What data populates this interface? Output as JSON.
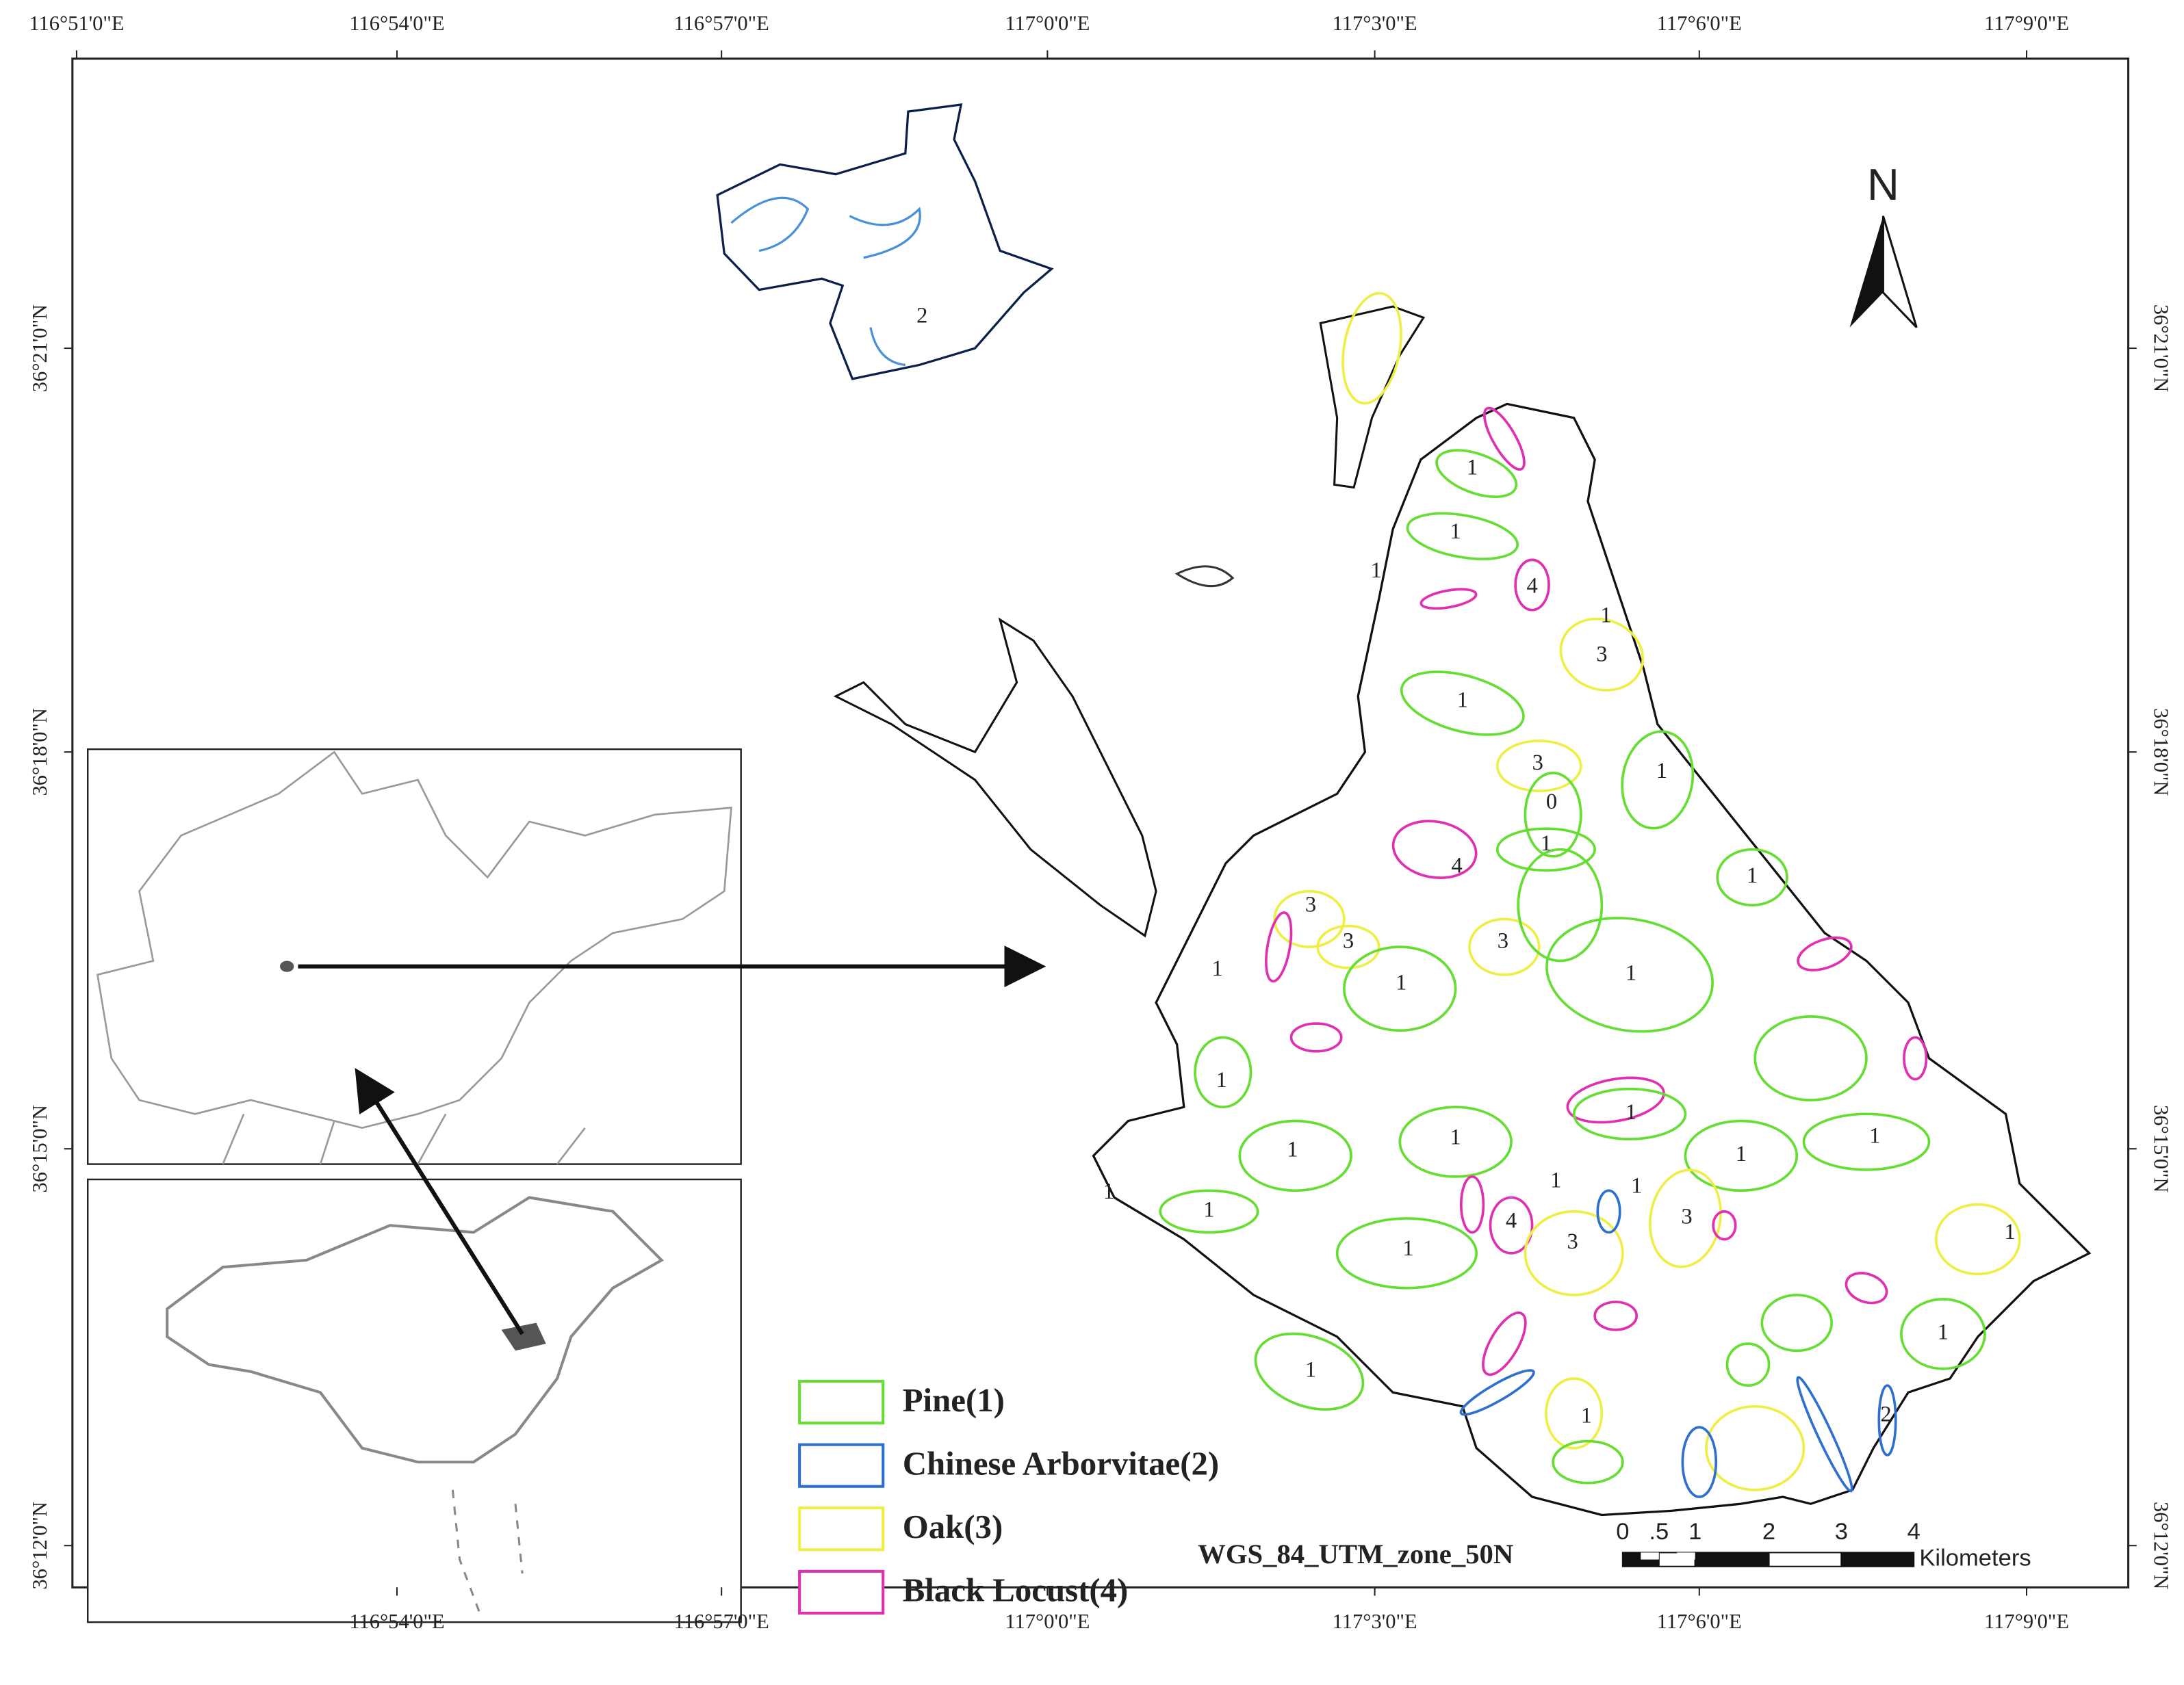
{
  "map": {
    "top_labels": [
      "116°51'0\"E",
      "116°54'0\"E",
      "116°57'0\"E",
      "117°0'0\"E",
      "117°3'0\"E",
      "117°6'0\"E",
      "117°9'0\"E"
    ],
    "bottom_labels": [
      "116°54'0\"E",
      "116°57'0\"E",
      "117°0'0\"E",
      "117°3'0\"E",
      "117°6'0\"E",
      "117°9'0\"E"
    ],
    "left_labels": [
      "36°21'0\"N",
      "36°18'0\"N",
      "36°15'0\"N",
      "36°12'0\"N"
    ],
    "right_labels": [
      "36°21'0\"N",
      "36°18'0\"N",
      "36°15'0\"N",
      "36°12'0\"N"
    ],
    "north": "N",
    "legend": [
      {
        "label": "Pine(1)",
        "color": "#66dd33"
      },
      {
        "label": "Chinese Arborvitae(2)",
        "color": "#2f6fd0"
      },
      {
        "label": "Oak(3)",
        "color": "#eeee44"
      },
      {
        "label": "Black Locust(4)",
        "color": "#e030b0"
      }
    ],
    "projection": "WGS_84_UTM_zone_50N",
    "scale_bar": {
      "labels": [
        "0",
        ".5",
        "1",
        "2",
        "3",
        "4"
      ],
      "unit": "Kilometers"
    },
    "region_labels": [
      "2",
      "1",
      "1",
      "1",
      "4",
      "1",
      "3",
      "1",
      "3",
      "1",
      "0",
      "1",
      "4",
      "1",
      "3",
      "3",
      "3",
      "1",
      "1",
      "1",
      "1",
      "1",
      "1",
      "1",
      "1",
      "1",
      "1",
      "1",
      "1",
      "1",
      "4",
      "3",
      "1",
      "3",
      "1",
      "1",
      "1",
      "1",
      "2"
    ]
  }
}
